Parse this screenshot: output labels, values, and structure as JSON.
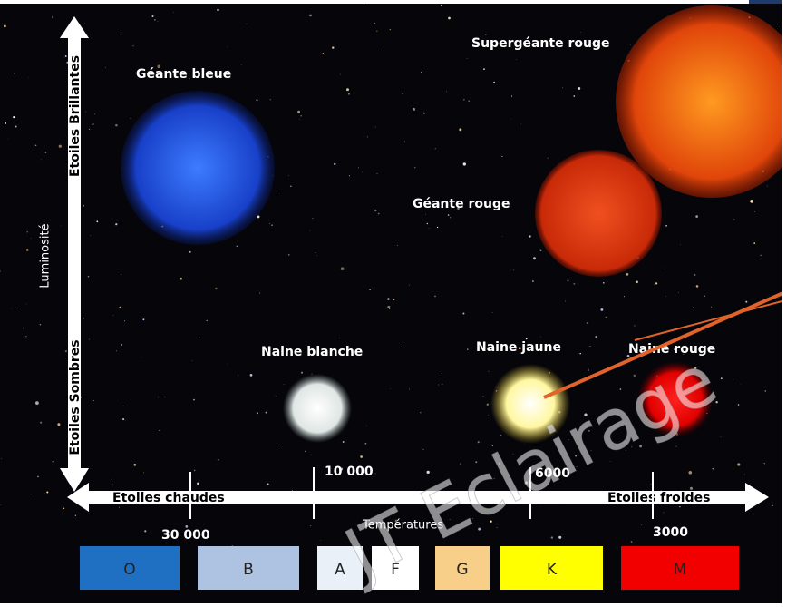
{
  "labels": {
    "blue_giant": "Géante bleue",
    "red_supergiant": "Supergéante rouge",
    "red_giant": "Géante rouge",
    "white_dwarf": "Naine blanche",
    "yellow_dwarf": "Naine jaune",
    "red_dwarf": "Naine rouge"
  },
  "vertical_axis": {
    "title": "Luminosité",
    "top": "Etoiles Brillantes",
    "bottom": "Etoiles Sombres"
  },
  "horizontal_axis": {
    "title": "Températures",
    "left": "Etoiles chaudes",
    "right": "Etoiles froides",
    "ticks": [
      "30 000",
      "10 000",
      "6000",
      "3000"
    ]
  },
  "classes": [
    "O",
    "B",
    "A",
    "F",
    "G",
    "K",
    "M"
  ],
  "watermark": "JT Eclairage"
}
